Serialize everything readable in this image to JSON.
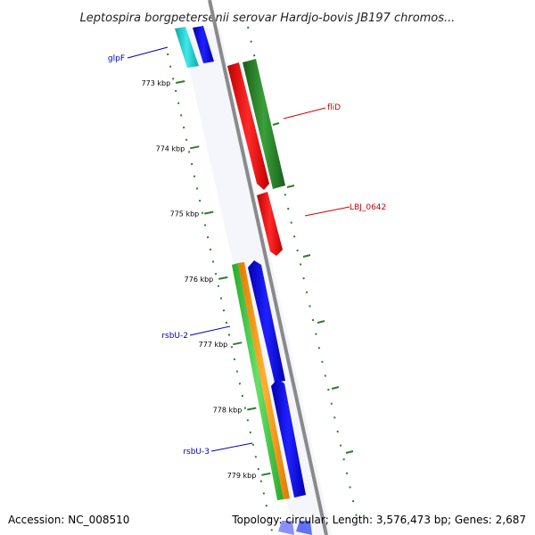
{
  "title": "Leptospira borgpetersenii serovar Hardjo-bovis JB197 chromos...",
  "footer": {
    "accession": "Accession: NC_008510",
    "topology": "Topology: circular; Length: 3,576,473 bp; Genes: 2,687"
  },
  "ticks": [
    {
      "label": "773 kbp",
      "kbp": 773
    },
    {
      "label": "774 kbp",
      "kbp": 774
    },
    {
      "label": "775 kbp",
      "kbp": 775
    },
    {
      "label": "776 kbp",
      "kbp": 776
    },
    {
      "label": "777 kbp",
      "kbp": 777
    },
    {
      "label": "778 kbp",
      "kbp": 778
    },
    {
      "label": "779 kbp",
      "kbp": 779
    }
  ],
  "gene_labels": [
    {
      "name": "glpF",
      "color": "#0000bb"
    },
    {
      "name": "fliD",
      "color": "#cc0000"
    },
    {
      "name": "LBJ_0642",
      "color": "#cc0000"
    },
    {
      "name": "rsbU-2",
      "color": "#0000bb"
    },
    {
      "name": "rsbU-3",
      "color": "#0000bb"
    }
  ],
  "colors": {
    "backbone": "#8a8a8a",
    "red_gene": "#ff1010",
    "dark_green_gene": "#2a8a2a",
    "blue_gene": "#1010ee",
    "cyan_gene": "#20d0d0",
    "light_green_gene": "#44cc44",
    "orange_gene": "#ff9900",
    "dotted_track": "#2e7d2e"
  }
}
